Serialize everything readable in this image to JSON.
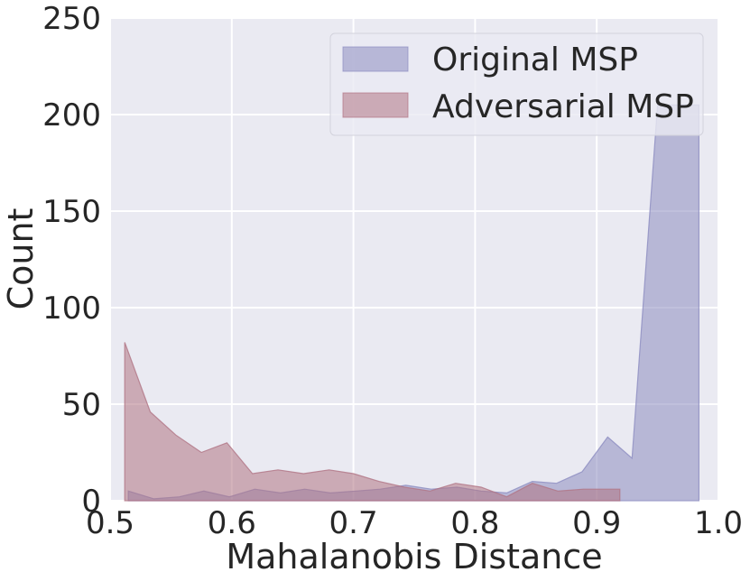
{
  "chart_data": {
    "type": "area",
    "title": "",
    "xlabel": "Mahalanobis Distance",
    "ylabel": "Count",
    "xlim": [
      0.5,
      1.0
    ],
    "ylim": [
      0,
      250
    ],
    "xticks": [
      "0.5",
      "0.6",
      "0.7",
      "0.8",
      "0.9",
      "1.0"
    ],
    "yticks": [
      "0",
      "50",
      "100",
      "150",
      "200",
      "250"
    ],
    "grid": true,
    "legend_position": "top-right",
    "series": [
      {
        "name": "Original MSP",
        "color": "#8c8cc0",
        "x": [
          0.515,
          0.536,
          0.557,
          0.577,
          0.598,
          0.619,
          0.64,
          0.66,
          0.681,
          0.702,
          0.722,
          0.743,
          0.764,
          0.785,
          0.805,
          0.826,
          0.847,
          0.867,
          0.888,
          0.909,
          0.929,
          0.95,
          0.971,
          0.984
        ],
        "values": [
          5,
          1,
          2,
          5,
          2,
          6,
          4,
          6,
          4,
          5,
          6,
          8,
          6,
          7,
          5,
          4,
          10,
          9,
          15,
          33,
          22,
          205,
          205,
          205
        ]
      },
      {
        "name": "Adversarial MSP",
        "color": "#b07484",
        "x": [
          0.512,
          0.533,
          0.554,
          0.575,
          0.596,
          0.617,
          0.638,
          0.659,
          0.68,
          0.7,
          0.721,
          0.742,
          0.763,
          0.784,
          0.805,
          0.826,
          0.847,
          0.868,
          0.889,
          0.909,
          0.919
        ],
        "values": [
          82,
          46,
          34,
          25,
          30,
          14,
          16,
          14,
          16,
          14,
          10,
          7,
          5,
          9,
          7,
          2,
          9,
          5,
          6,
          6,
          6
        ]
      }
    ]
  }
}
